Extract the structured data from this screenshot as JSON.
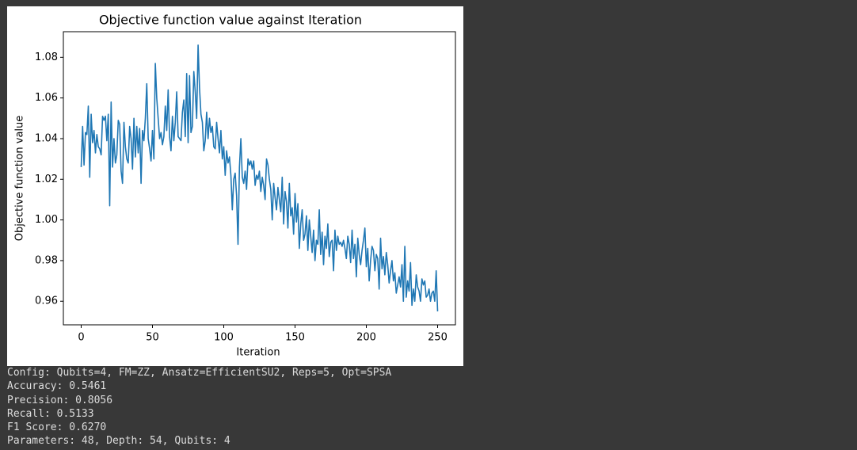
{
  "chart_data": {
    "type": "line",
    "title": "Objective function value against Iteration",
    "x_label": "Iteration",
    "y_label": "Objective function value",
    "xlim": [
      -12.5,
      262.5
    ],
    "ylim": [
      0.9484,
      1.0926
    ],
    "xticks": [
      0,
      50,
      100,
      150,
      200,
      250
    ],
    "yticks": [
      0.96,
      0.98,
      {
        "value": 1,
        "label": "1.00"
      },
      1.02,
      1.04,
      1.06,
      1.08
    ],
    "grid": false,
    "x": [
      0,
      1,
      2,
      3,
      4,
      5,
      6,
      7,
      8,
      9,
      10,
      11,
      12,
      13,
      14,
      15,
      16,
      17,
      18,
      19,
      20,
      21,
      22,
      23,
      24,
      25,
      26,
      27,
      28,
      29,
      30,
      31,
      32,
      33,
      34,
      35,
      36,
      37,
      38,
      39,
      40,
      41,
      42,
      43,
      44,
      45,
      46,
      47,
      48,
      49,
      50,
      51,
      52,
      53,
      54,
      55,
      56,
      57,
      58,
      59,
      60,
      61,
      62,
      63,
      64,
      65,
      66,
      67,
      68,
      69,
      70,
      71,
      72,
      73,
      74,
      75,
      76,
      77,
      78,
      79,
      80,
      81,
      82,
      83,
      84,
      85,
      86,
      87,
      88,
      89,
      90,
      91,
      92,
      93,
      94,
      95,
      96,
      97,
      98,
      99,
      100,
      101,
      102,
      103,
      104,
      105,
      106,
      107,
      108,
      109,
      110,
      111,
      112,
      113,
      114,
      115,
      116,
      117,
      118,
      119,
      120,
      121,
      122,
      123,
      124,
      125,
      126,
      127,
      128,
      129,
      130,
      131,
      132,
      133,
      134,
      135,
      136,
      137,
      138,
      139,
      140,
      141,
      142,
      143,
      144,
      145,
      146,
      147,
      148,
      149,
      150,
      151,
      152,
      153,
      154,
      155,
      156,
      157,
      158,
      159,
      160,
      161,
      162,
      163,
      164,
      165,
      166,
      167,
      168,
      169,
      170,
      171,
      172,
      173,
      174,
      175,
      176,
      177,
      178,
      179,
      180,
      181,
      182,
      183,
      184,
      185,
      186,
      187,
      188,
      189,
      190,
      191,
      192,
      193,
      194,
      195,
      196,
      197,
      198,
      199,
      200,
      201,
      202,
      203,
      204,
      205,
      206,
      207,
      208,
      209,
      210,
      211,
      212,
      213,
      214,
      215,
      216,
      217,
      218,
      219,
      220,
      221,
      222,
      223,
      224,
      225,
      226,
      227,
      228,
      229,
      230,
      231,
      232,
      233,
      234,
      235,
      236,
      237,
      238,
      239,
      240,
      241,
      242,
      243,
      244,
      245,
      246,
      247,
      248,
      249,
      250
    ],
    "series": [
      {
        "color": "#1f77b4",
        "values": [
          1.026,
          1.046,
          1.027,
          1.043,
          1.042,
          1.056,
          1.021,
          1.052,
          1.038,
          1.044,
          1.033,
          1.042,
          1.036,
          1.035,
          1.032,
          1.051,
          1.049,
          1.051,
          1.039,
          1.052,
          1.007,
          1.058,
          1.026,
          1.04,
          1.028,
          1.032,
          1.049,
          1.047,
          1.024,
          1.018,
          1.048,
          1.036,
          1.03,
          1.028,
          1.046,
          1.04,
          1.025,
          1.05,
          1.031,
          1.046,
          1.033,
          1.045,
          1.018,
          1.044,
          1.039,
          1.05,
          1.067,
          1.04,
          1.035,
          1.029,
          1.044,
          1.03,
          1.077,
          1.06,
          1.05,
          1.04,
          1.043,
          1.037,
          1.041,
          1.056,
          1.044,
          1.064,
          1.041,
          1.034,
          1.051,
          1.039,
          1.048,
          1.063,
          1.041,
          1.04,
          1.039,
          1.053,
          1.059,
          1.041,
          1.072,
          1.038,
          1.071,
          1.043,
          1.046,
          1.073,
          1.063,
          1.05,
          1.086,
          1.065,
          1.052,
          1.048,
          1.034,
          1.039,
          1.053,
          1.04,
          1.05,
          1.043,
          1.046,
          1.036,
          1.035,
          1.048,
          1.04,
          1.033,
          1.044,
          1.03,
          1.036,
          1.022,
          1.034,
          1.028,
          1.031,
          1.022,
          1.005,
          1.02,
          1.023,
          1.012,
          0.988,
          1.026,
          1.04,
          1.021,
          1.018,
          1.024,
          1.015,
          1.03,
          1.027,
          1.029,
          1.025,
          1.029,
          1.017,
          1.022,
          1.02,
          1.024,
          1.014,
          1.021,
          1.017,
          1.01,
          1.03,
          1.027,
          1.02,
          1.015,
          1.0,
          1.018,
          1.011,
          1.005,
          1.016,
          1.01,
          1.004,
          1.021,
          0.998,
          1.014,
          1.009,
          0.996,
          1.018,
          1.002,
          1.006,
          0.993,
          1.013,
          0.999,
          1.008,
          0.986,
          0.998,
          1.005,
          0.99,
          0.993,
          1.002,
          0.985,
          1.0,
          0.992,
          0.984,
          0.995,
          0.98,
          0.99,
          0.988,
          1.005,
          0.983,
          0.994,
          0.978,
          0.992,
          0.986,
          0.998,
          0.982,
          0.989,
          0.99,
          0.975,
          0.995,
          0.985,
          0.992,
          0.988,
          0.989,
          0.987,
          0.99,
          0.986,
          0.981,
          0.992,
          0.988,
          0.979,
          0.995,
          0.981,
          0.988,
          0.972,
          0.991,
          0.983,
          0.978,
          0.985,
          0.99,
          0.996,
          0.977,
          0.986,
          0.97,
          0.98,
          0.987,
          0.985,
          0.975,
          0.983,
          0.981,
          0.966,
          0.991,
          0.976,
          0.982,
          0.973,
          0.984,
          0.978,
          0.969,
          0.975,
          0.98,
          0.97,
          0.974,
          0.964,
          0.968,
          0.972,
          0.967,
          0.978,
          0.96,
          0.987,
          0.962,
          0.97,
          0.965,
          0.979,
          0.958,
          0.966,
          0.96,
          0.973,
          0.967,
          0.965,
          0.96,
          0.971,
          0.968,
          0.97,
          0.962,
          0.963,
          0.966,
          0.96,
          0.964,
          0.965,
          0.96,
          0.975,
          0.955
        ]
      }
    ]
  },
  "output": [
    "Config: Qubits=4, FM=ZZ, Ansatz=EfficientSU2, Reps=5, Opt=SPSA",
    "Accuracy: 0.5461",
    "Precision: 0.8056",
    "Recall: 0.5133",
    "F1 Score: 0.6270",
    "Parameters: 48, Depth: 54, Qubits: 4"
  ]
}
